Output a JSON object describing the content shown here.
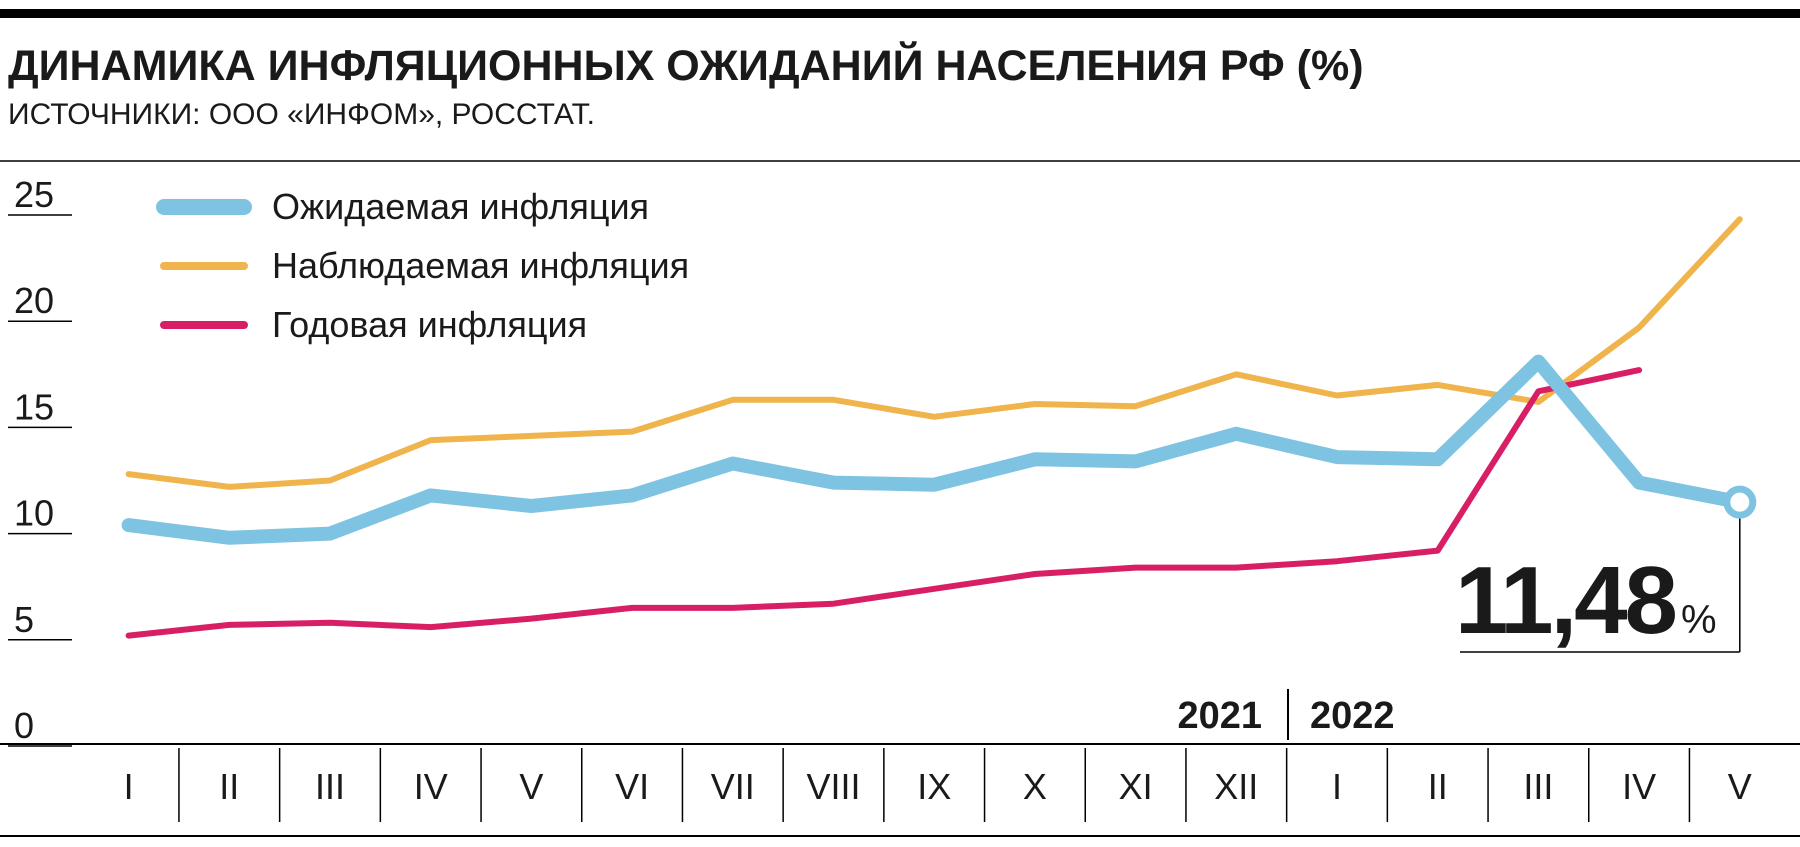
{
  "chart_data": {
    "type": "line",
    "title": "ДИНАМИКА ИНФЛЯЦИОННЫХ ОЖИДАНИЙ НАСЕЛЕНИЯ РФ (%)",
    "subtitle": "ИСТОЧНИКИ: ООО «ИНФОМ», РОССТАТ.",
    "categories": [
      "I",
      "II",
      "III",
      "IV",
      "V",
      "VI",
      "VII",
      "VIII",
      "IX",
      "X",
      "XI",
      "XII",
      "I",
      "II",
      "III",
      "IV",
      "V"
    ],
    "years": [
      "2021",
      "2022"
    ],
    "ylim": [
      0,
      25
    ],
    "yticks": [
      0,
      5,
      10,
      15,
      20,
      25
    ],
    "series": [
      {
        "name": "Ожидаемая инфляция",
        "color": "#7ec4e2",
        "values": [
          10.4,
          9.8,
          10.0,
          11.8,
          11.3,
          11.8,
          13.3,
          12.4,
          12.3,
          13.5,
          13.4,
          14.7,
          13.6,
          13.5,
          18.1,
          12.4,
          11.48
        ]
      },
      {
        "name": "Наблюдаемая инфляция",
        "color": "#f0b44c",
        "values": [
          12.8,
          12.2,
          12.5,
          14.4,
          14.6,
          14.8,
          16.3,
          16.3,
          15.5,
          16.1,
          16.0,
          17.5,
          16.5,
          17.0,
          16.2,
          19.7,
          24.8
        ]
      },
      {
        "name": "Годовая инфляция",
        "color": "#d81f66",
        "values": [
          5.2,
          5.7,
          5.8,
          5.6,
          6.0,
          6.5,
          6.5,
          6.7,
          7.4,
          8.1,
          8.4,
          8.4,
          8.7,
          9.2,
          16.7,
          17.7,
          null
        ]
      }
    ],
    "annotation": {
      "text": "11,48",
      "unit": "%"
    }
  }
}
